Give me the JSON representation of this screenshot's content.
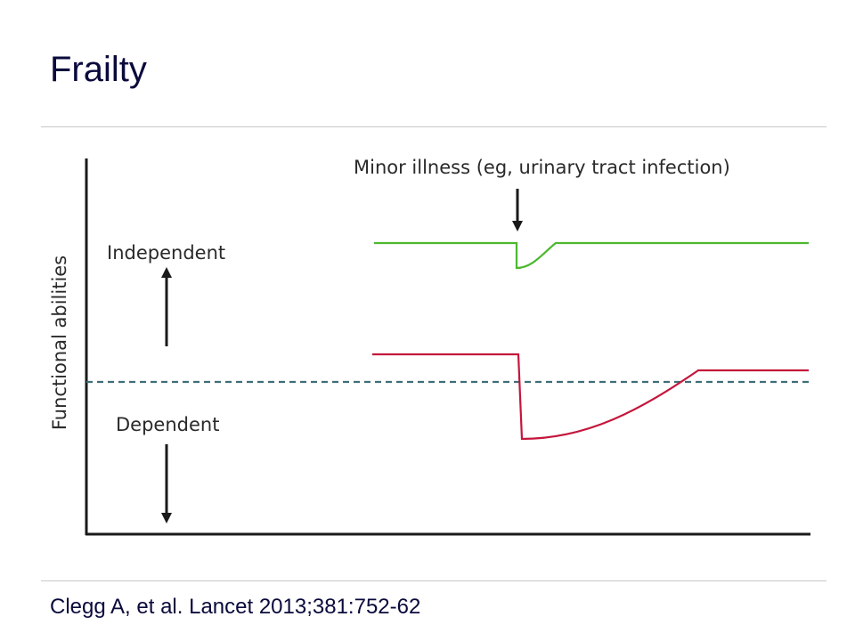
{
  "slide": {
    "title": "Frailty",
    "citation": "Clegg A, et al. Lancet 2013;381:752-62"
  },
  "diagram": {
    "y_axis_label": "Functional abilities",
    "label_independent": "Independent",
    "label_dependent": "Dependent",
    "event_annotation": "Minor illness (eg, urinary tract infection)",
    "colors": {
      "fit_line": "#4cb82e",
      "frail_line": "#c4163c",
      "threshold": "#3d6e78",
      "axes": "#1a1a1a"
    }
  }
}
